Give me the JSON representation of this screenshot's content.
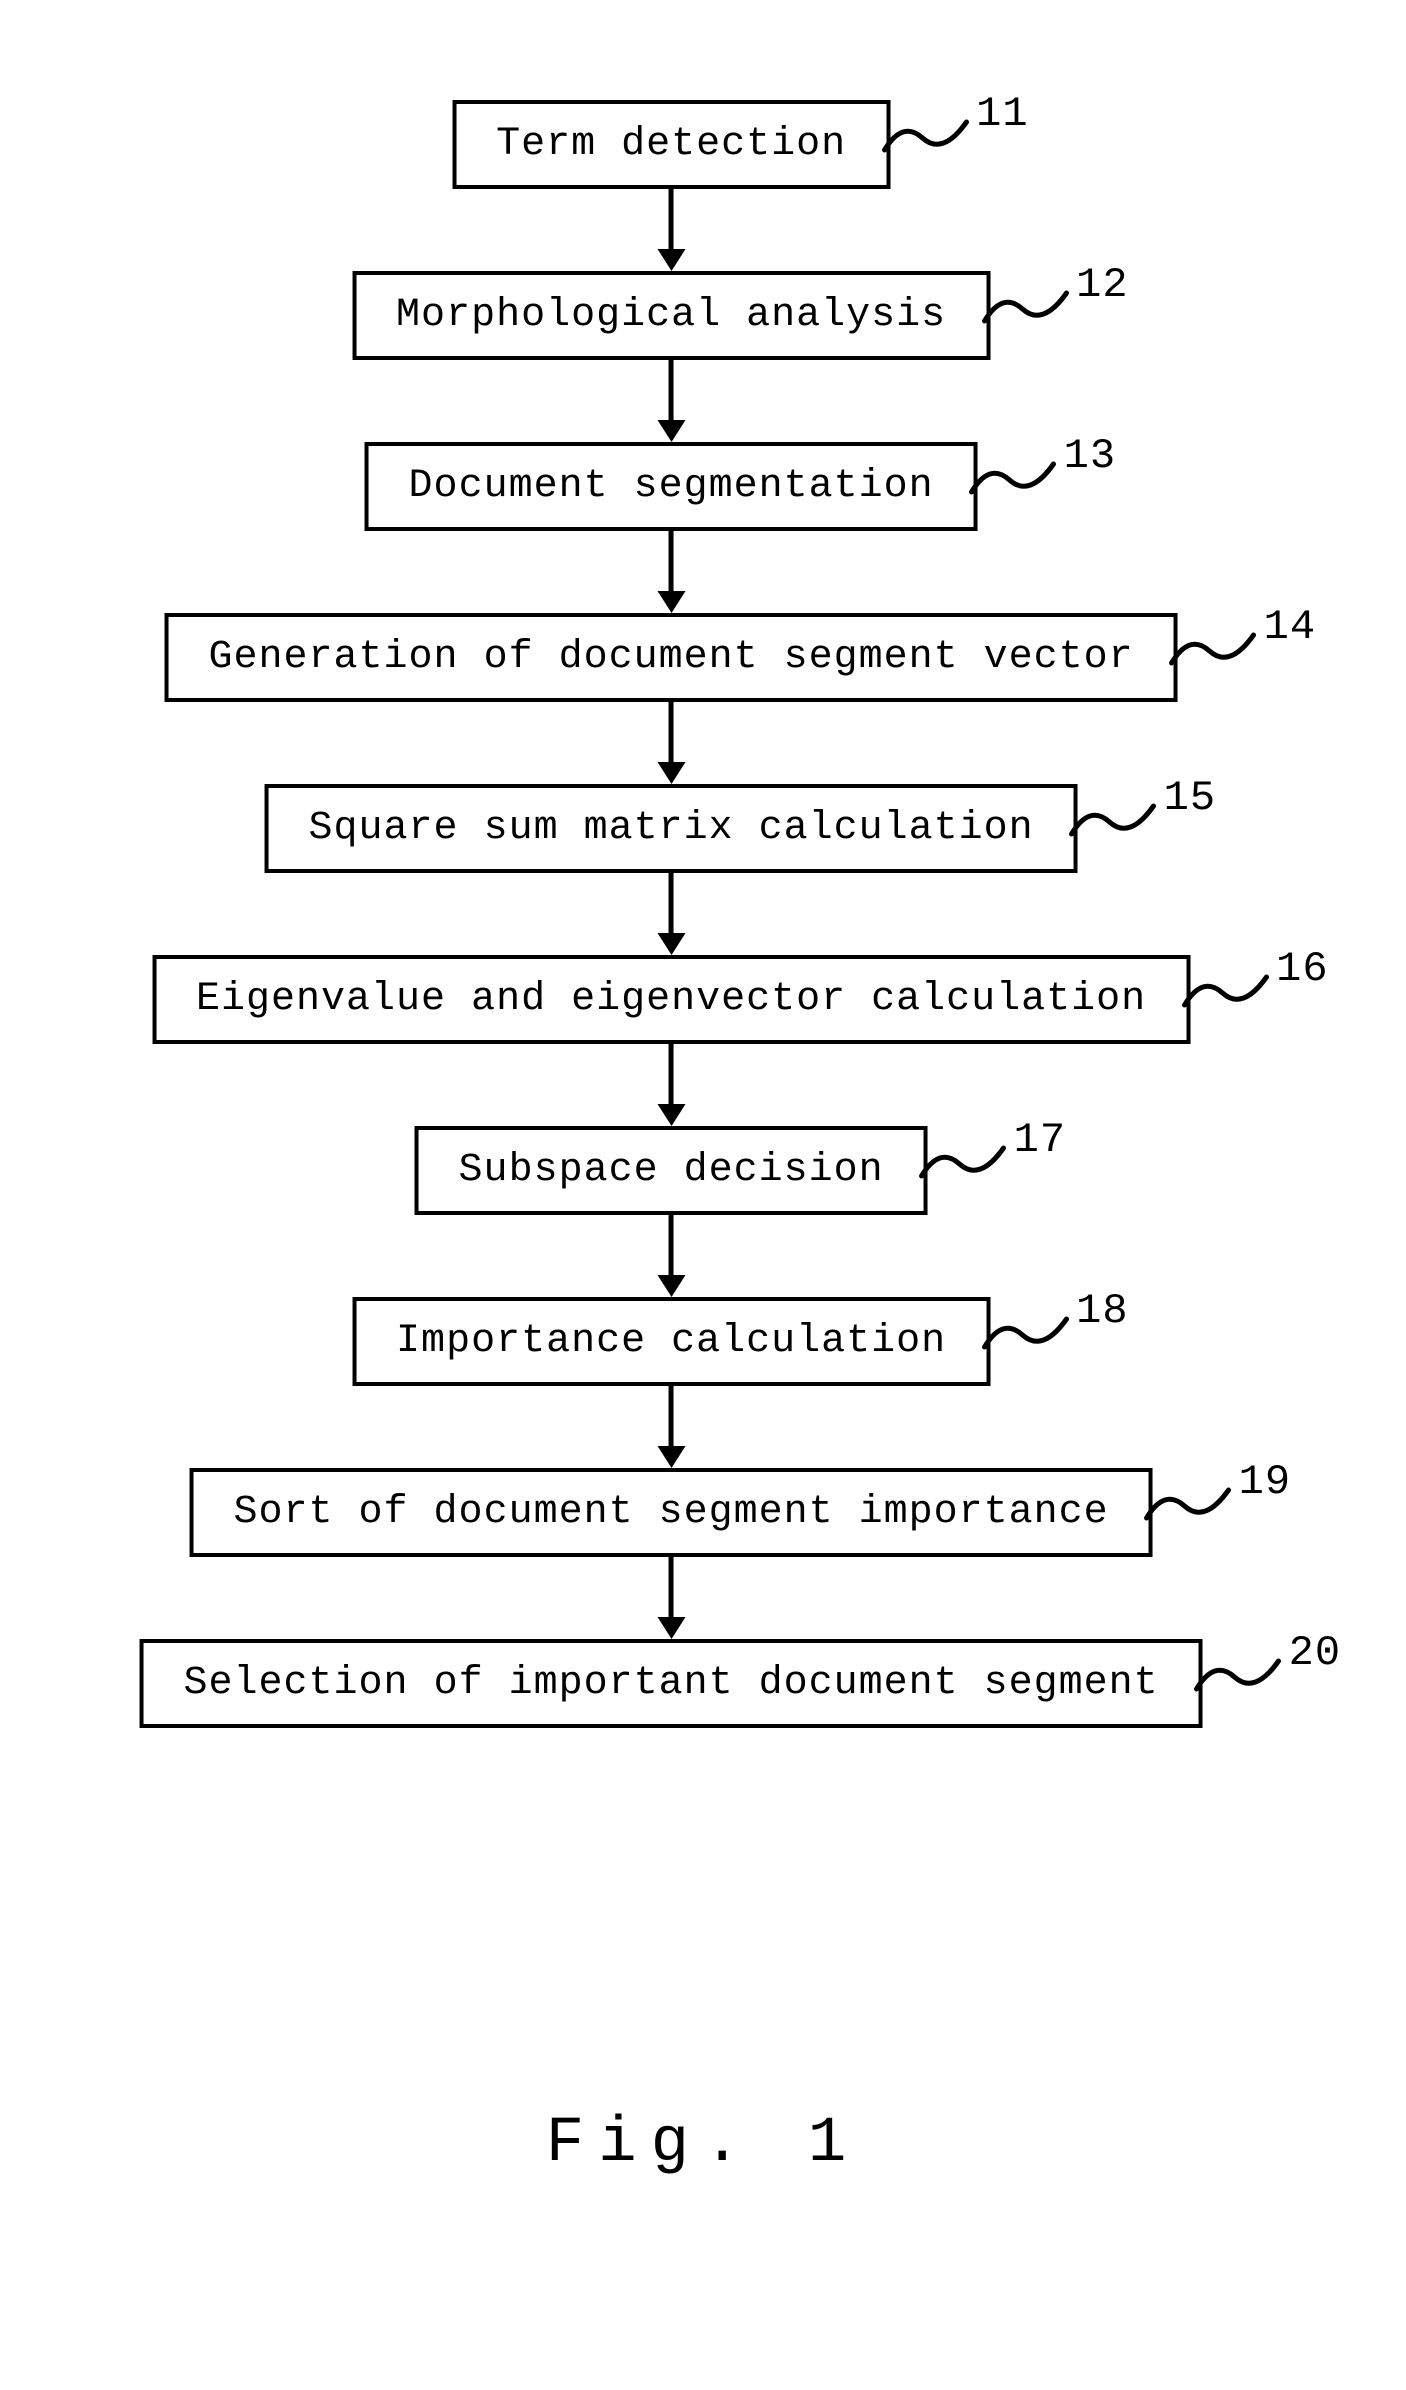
{
  "flowchart": {
    "type": "flowchart",
    "background_color": "#ffffff",
    "box_border_color": "#000000",
    "box_border_width": 4,
    "box_bg_color": "#ffffff",
    "arrow_color": "#000000",
    "font_family": "Courier New, monospace",
    "box_fontsize": 40,
    "label_fontsize": 42,
    "caption_fontsize": 64,
    "steps": [
      {
        "label": "Term detection",
        "ref": "11"
      },
      {
        "label": "Morphological analysis",
        "ref": "12"
      },
      {
        "label": "Document segmentation",
        "ref": "13"
      },
      {
        "label": "Generation of document segment vector",
        "ref": "14"
      },
      {
        "label": "Square sum matrix calculation",
        "ref": "15"
      },
      {
        "label": "Eigenvalue and eigenvector calculation",
        "ref": "16"
      },
      {
        "label": "Subspace decision",
        "ref": "17"
      },
      {
        "label": "Importance calculation",
        "ref": "18"
      },
      {
        "label": "Sort of document segment importance",
        "ref": "19"
      },
      {
        "label": "Selection of important document segment",
        "ref": "20"
      }
    ],
    "caption": "Fig. 1"
  }
}
